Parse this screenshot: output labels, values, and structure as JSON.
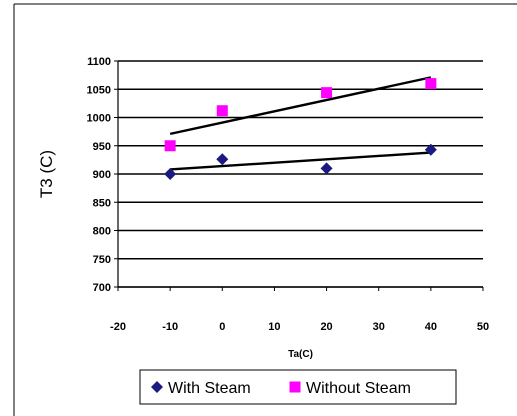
{
  "chart_data": {
    "type": "scatter",
    "title": "",
    "xlabel": "Ta(C)",
    "ylabel": "T3 (C)",
    "xlim": [
      -20,
      50
    ],
    "ylim": [
      700,
      1100
    ],
    "xticks": [
      -20,
      -10,
      0,
      10,
      20,
      30,
      40,
      50
    ],
    "yticks": [
      700,
      750,
      800,
      850,
      900,
      950,
      1000,
      1050,
      1100
    ],
    "xtick_labels": [
      "-20",
      "-10",
      "0",
      "10",
      "20",
      "30",
      "40",
      "50"
    ],
    "ytick_labels": [
      "700",
      "750",
      "800",
      "850",
      "900",
      "950",
      "1000",
      "1050",
      "1100"
    ],
    "grid": "horizontal",
    "legend_position": "bottom",
    "series": [
      {
        "name": "With Steam",
        "marker": "diamond",
        "color": "#1a1a80",
        "x": [
          -10,
          0,
          20,
          40
        ],
        "y": [
          900,
          926,
          910,
          943
        ],
        "trendline": {
          "x": [
            -10,
            40
          ],
          "y": [
            908,
            938
          ]
        }
      },
      {
        "name": "Without Steam",
        "marker": "square",
        "color": "#ff00ff",
        "x": [
          -10,
          0,
          20,
          40
        ],
        "y": [
          950,
          1012,
          1044,
          1060
        ],
        "trendline": {
          "x": [
            -10,
            40
          ],
          "y": [
            971,
            1071
          ]
        }
      }
    ]
  }
}
